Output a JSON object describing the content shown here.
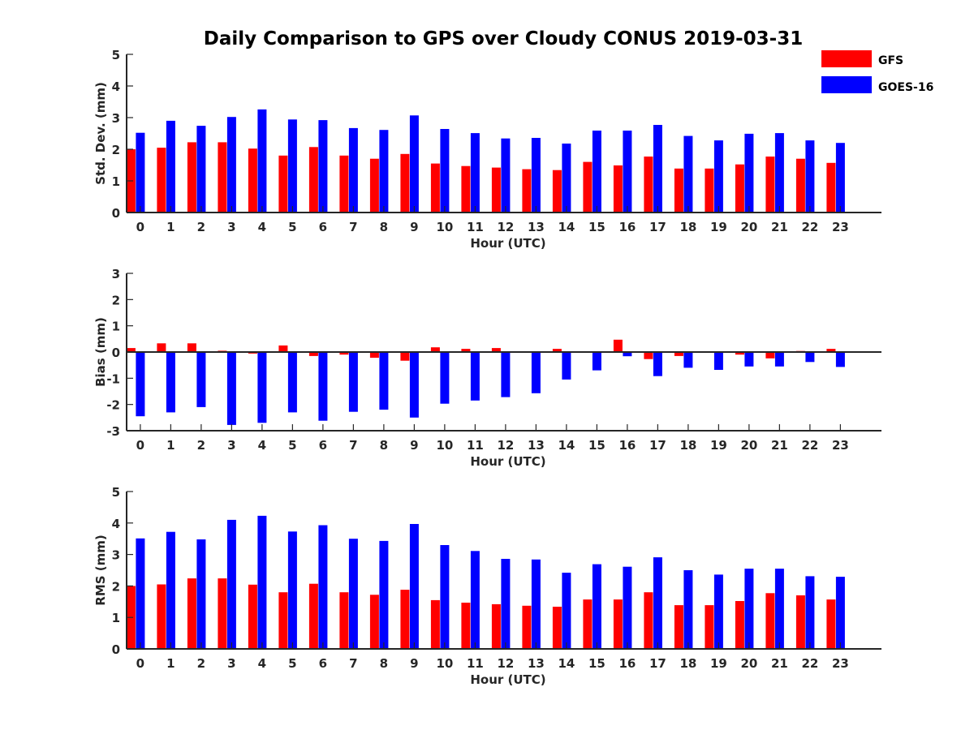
{
  "colors": {
    "gfs": "#ff0000",
    "goes": "#0000ff",
    "axis": "#262626"
  },
  "legend": {
    "items": [
      "GFS",
      "GOES-16"
    ],
    "placement": "top-right"
  },
  "chart_data": [
    {
      "type": "bar",
      "title": "Daily Comparison to GPS over Cloudy CONUS 2019-03-31",
      "xlabel": "Hour (UTC)",
      "ylabel": "Std. Dev. (mm)",
      "ylim": [
        0,
        5
      ],
      "yticks": [
        0,
        1,
        2,
        3,
        4,
        5
      ],
      "categories": [
        "0",
        "1",
        "2",
        "3",
        "4",
        "5",
        "6",
        "7",
        "8",
        "9",
        "10",
        "11",
        "12",
        "13",
        "14",
        "15",
        "16",
        "17",
        "18",
        "19",
        "20",
        "21",
        "22",
        "23"
      ],
      "series": [
        {
          "name": "GFS",
          "values": [
            2.0,
            2.05,
            2.22,
            2.22,
            2.02,
            1.8,
            2.07,
            1.8,
            1.7,
            1.85,
            1.55,
            1.47,
            1.42,
            1.37,
            1.34,
            1.6,
            1.49,
            1.77,
            1.39,
            1.39,
            1.52,
            1.77,
            1.7,
            1.57
          ]
        },
        {
          "name": "GOES-16",
          "values": [
            2.52,
            2.9,
            2.74,
            3.02,
            3.26,
            2.94,
            2.92,
            2.67,
            2.61,
            3.07,
            2.64,
            2.51,
            2.34,
            2.36,
            2.18,
            2.59,
            2.59,
            2.77,
            2.42,
            2.28,
            2.49,
            2.51,
            2.28,
            2.2
          ]
        }
      ]
    },
    {
      "type": "bar",
      "title": "",
      "xlabel": "Hour (UTC)",
      "ylabel": "Bias (mm)",
      "ylim": [
        -3,
        3
      ],
      "yticks": [
        -3,
        -2,
        -1,
        0,
        1,
        2,
        3
      ],
      "categories": [
        "0",
        "1",
        "2",
        "3",
        "4",
        "5",
        "6",
        "7",
        "8",
        "9",
        "10",
        "11",
        "12",
        "13",
        "14",
        "15",
        "16",
        "17",
        "18",
        "19",
        "20",
        "21",
        "22",
        "23"
      ],
      "series": [
        {
          "name": "GFS",
          "values": [
            0.15,
            0.33,
            0.33,
            0.05,
            -0.06,
            0.25,
            -0.15,
            -0.1,
            -0.22,
            -0.33,
            0.18,
            0.12,
            0.15,
            0.03,
            0.12,
            0.03,
            0.47,
            -0.27,
            -0.15,
            -0.02,
            -0.1,
            -0.24,
            0.04,
            0.12
          ]
        },
        {
          "name": "GOES-16",
          "values": [
            -2.45,
            -2.3,
            -2.1,
            -2.78,
            -2.7,
            -2.3,
            -2.62,
            -2.28,
            -2.2,
            -2.5,
            -1.97,
            -1.85,
            -1.72,
            -1.57,
            -1.05,
            -0.7,
            -0.16,
            -0.92,
            -0.6,
            -0.68,
            -0.55,
            -0.55,
            -0.38,
            -0.57
          ]
        }
      ]
    },
    {
      "type": "bar",
      "title": "",
      "xlabel": "Hour (UTC)",
      "ylabel": "RMS (mm)",
      "ylim": [
        0,
        5
      ],
      "yticks": [
        0,
        1,
        2,
        3,
        4,
        5
      ],
      "categories": [
        "0",
        "1",
        "2",
        "3",
        "4",
        "5",
        "6",
        "7",
        "8",
        "9",
        "10",
        "11",
        "12",
        "13",
        "14",
        "15",
        "16",
        "17",
        "18",
        "19",
        "20",
        "21",
        "22",
        "23"
      ],
      "series": [
        {
          "name": "GFS",
          "values": [
            2.0,
            2.05,
            2.24,
            2.24,
            2.04,
            1.8,
            2.07,
            1.8,
            1.72,
            1.88,
            1.55,
            1.47,
            1.42,
            1.37,
            1.34,
            1.57,
            1.57,
            1.8,
            1.39,
            1.39,
            1.52,
            1.77,
            1.7,
            1.57
          ]
        },
        {
          "name": "GOES-16",
          "values": [
            3.51,
            3.72,
            3.48,
            4.1,
            4.23,
            3.73,
            3.93,
            3.5,
            3.43,
            3.97,
            3.3,
            3.11,
            2.86,
            2.84,
            2.42,
            2.69,
            2.61,
            2.91,
            2.5,
            2.36,
            2.55,
            2.55,
            2.31,
            2.29
          ]
        }
      ]
    }
  ]
}
